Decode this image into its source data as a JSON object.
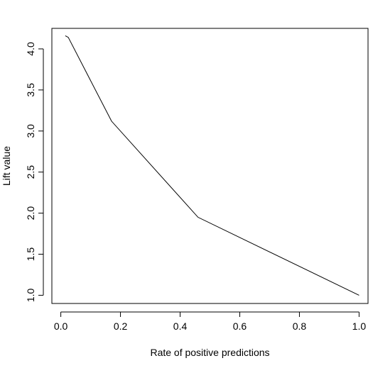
{
  "chart_data": {
    "type": "line",
    "title": "",
    "xlabel": "Rate of positive predictions",
    "ylabel": "Lift value",
    "xlim": [
      -0.03,
      1.03
    ],
    "ylim": [
      0.9,
      4.25
    ],
    "x_ticks": [
      0.0,
      0.2,
      0.4,
      0.6,
      0.8,
      1.0
    ],
    "x_tick_labels": [
      "0.0",
      "0.2",
      "0.4",
      "0.6",
      "0.8",
      "1.0"
    ],
    "y_ticks": [
      1.0,
      1.5,
      2.0,
      2.5,
      3.0,
      3.5,
      4.0
    ],
    "y_tick_labels": [
      "1.0",
      "1.5",
      "2.0",
      "2.5",
      "3.0",
      "3.5",
      "4.0"
    ],
    "grid": false,
    "legend": "none",
    "line_color": "#000000",
    "series": [
      {
        "x": [
          0.015,
          0.025,
          0.17,
          0.46,
          1.0
        ],
        "y": [
          4.16,
          4.14,
          3.12,
          1.95,
          1.0
        ]
      }
    ]
  }
}
